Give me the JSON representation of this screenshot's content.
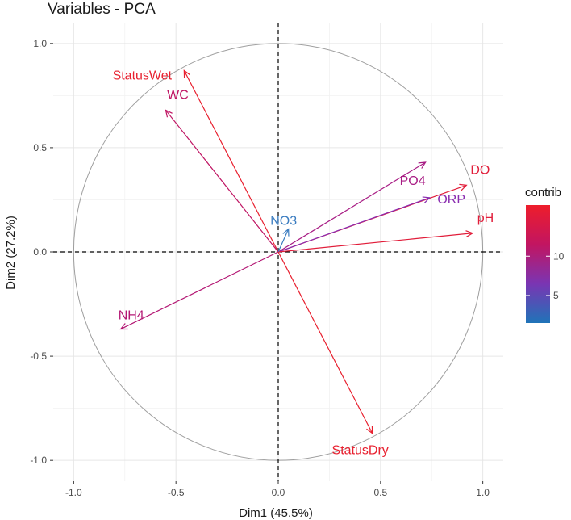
{
  "chart_data": {
    "type": "scatter",
    "subtype": "pca-variable-correlation-circle",
    "title": "Variables - PCA",
    "xlabel": "Dim1 (45.5%)",
    "ylabel": "Dim2 (27.2%)",
    "xlim": [
      -1.1,
      1.1
    ],
    "ylim": [
      -1.1,
      1.1
    ],
    "xticks": [
      -1.0,
      -0.5,
      0.0,
      0.5,
      1.0
    ],
    "yticks": [
      -1.0,
      -0.5,
      0.0,
      0.5,
      1.0
    ],
    "xtick_labels": [
      "-1.0",
      "-0.5",
      "0.0",
      "0.5",
      "1.0"
    ],
    "ytick_labels": [
      "-1.0",
      "-0.5",
      "0.0",
      "0.5",
      "1.0"
    ],
    "grid": true,
    "unit_circle": true,
    "variables": [
      {
        "name": "StatusWet",
        "x": -0.46,
        "y": 0.87,
        "contrib": 15.5,
        "color": "#e8202f"
      },
      {
        "name": "WC",
        "x": -0.55,
        "y": 0.68,
        "contrib": 12.5,
        "color": "#bf1563"
      },
      {
        "name": "PO4",
        "x": 0.72,
        "y": 0.43,
        "contrib": 11.5,
        "color": "#a81c84"
      },
      {
        "name": "DO",
        "x": 0.92,
        "y": 0.32,
        "contrib": 15.0,
        "color": "#e11d3a"
      },
      {
        "name": "ORP",
        "x": 0.74,
        "y": 0.26,
        "contrib": 9.5,
        "color": "#8a2cb0"
      },
      {
        "name": "pH",
        "x": 0.95,
        "y": 0.09,
        "contrib": 15.0,
        "color": "#e11d3a"
      },
      {
        "name": "NO3",
        "x": 0.05,
        "y": 0.11,
        "contrib": 2.5,
        "color": "#3a7cc0"
      },
      {
        "name": "NH4",
        "x": -0.77,
        "y": -0.37,
        "contrib": 12.0,
        "color": "#b31673"
      },
      {
        "name": "StatusDry",
        "x": 0.46,
        "y": -0.87,
        "contrib": 15.5,
        "color": "#e8202f"
      }
    ],
    "legend": {
      "title": "contrib",
      "placement": "right",
      "ticks": [
        5,
        10
      ],
      "range": [
        1.5,
        16.5
      ],
      "colors": [
        "#1f74b8",
        "#7a35b3",
        "#c21561",
        "#ee1d2b"
      ]
    }
  }
}
